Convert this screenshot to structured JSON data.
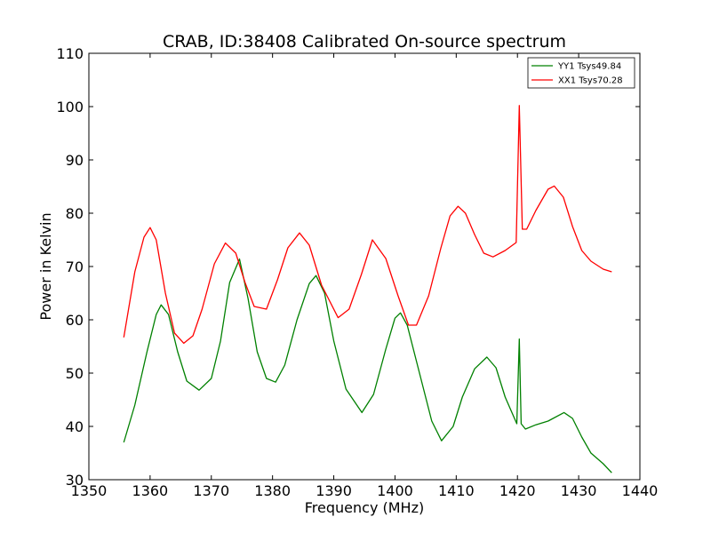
{
  "chart_data": {
    "type": "line",
    "title": "CRAB, ID:38408 Calibrated On-source spectrum",
    "xlabel": "Frequency (MHz)",
    "ylabel": "Power in Kelvin",
    "xlim": [
      1350,
      1440
    ],
    "ylim": [
      30,
      110
    ],
    "xticks": [
      "1350",
      "1360",
      "1370",
      "1380",
      "1390",
      "1400",
      "1410",
      "1420",
      "1430",
      "1440"
    ],
    "yticks": [
      "30",
      "40",
      "50",
      "60",
      "70",
      "80",
      "90",
      "100",
      "110"
    ],
    "grid": false,
    "legend_position": "top-right",
    "series": [
      {
        "name": "YY1 Tsys49.84",
        "color": "#008000",
        "x": [
          1355.7,
          1357.5,
          1359.5,
          1361.0,
          1361.8,
          1363.0,
          1364.5,
          1366.0,
          1368.0,
          1370.0,
          1371.5,
          1373.0,
          1374.6,
          1376.0,
          1377.5,
          1379.0,
          1380.5,
          1382.0,
          1384.0,
          1386.0,
          1387.1,
          1388.5,
          1390.0,
          1392.0,
          1394.6,
          1396.5,
          1398.5,
          1400.0,
          1400.9,
          1402.0,
          1404.0,
          1406.0,
          1407.6,
          1409.5,
          1411.0,
          1413.0,
          1415.0,
          1416.5,
          1418.0,
          1419.9,
          1420.3,
          1420.6,
          1421.3,
          1423.0,
          1425.0,
          1427.6,
          1429.0,
          1430.5,
          1432.0,
          1434.0,
          1435.4
        ],
        "y": [
          37.0,
          44.0,
          54.0,
          61.0,
          62.8,
          61.0,
          54.0,
          48.5,
          46.8,
          49.0,
          56.0,
          67.0,
          71.4,
          64.0,
          54.0,
          49.0,
          48.3,
          51.5,
          60.0,
          66.8,
          68.3,
          65.0,
          56.0,
          47.0,
          42.6,
          46.0,
          54.5,
          60.3,
          61.3,
          59.0,
          50.0,
          41.0,
          37.3,
          40.0,
          45.5,
          50.8,
          53.0,
          51.0,
          45.5,
          40.5,
          56.4,
          40.5,
          39.5,
          40.3,
          41.0,
          42.6,
          41.5,
          38.0,
          35.0,
          33.0,
          31.3
        ]
      },
      {
        "name": "XX1 Tsys70.28",
        "color": "#ff0000",
        "x": [
          1355.7,
          1357.5,
          1359.0,
          1360.0,
          1361.0,
          1362.5,
          1364.0,
          1365.5,
          1367.0,
          1368.5,
          1370.5,
          1372.3,
          1374.0,
          1375.5,
          1377.0,
          1379.0,
          1380.8,
          1382.5,
          1384.4,
          1386.0,
          1388.0,
          1390.7,
          1392.5,
          1394.5,
          1396.3,
          1398.5,
          1400.5,
          1402.2,
          1403.5,
          1405.5,
          1407.5,
          1409.0,
          1410.3,
          1411.5,
          1413.0,
          1414.5,
          1416.0,
          1418.0,
          1419.8,
          1420.3,
          1420.8,
          1421.5,
          1423.0,
          1425.0,
          1426.0,
          1427.5,
          1429.0,
          1430.5,
          1432.0,
          1434.0,
          1435.4
        ],
        "y": [
          56.7,
          69.0,
          75.5,
          77.3,
          75.0,
          65.0,
          57.5,
          55.6,
          57.0,
          62.0,
          70.5,
          74.4,
          72.5,
          67.0,
          62.5,
          62.0,
          67.5,
          73.5,
          76.3,
          74.0,
          66.5,
          60.4,
          62.0,
          68.5,
          75.0,
          71.5,
          64.5,
          59.0,
          59.0,
          64.5,
          73.5,
          79.5,
          81.3,
          80.0,
          76.0,
          72.5,
          71.8,
          73.0,
          74.5,
          100.2,
          77.0,
          77.0,
          80.5,
          84.5,
          85.1,
          83.0,
          77.5,
          73.0,
          71.0,
          69.5,
          69.0
        ]
      }
    ]
  }
}
